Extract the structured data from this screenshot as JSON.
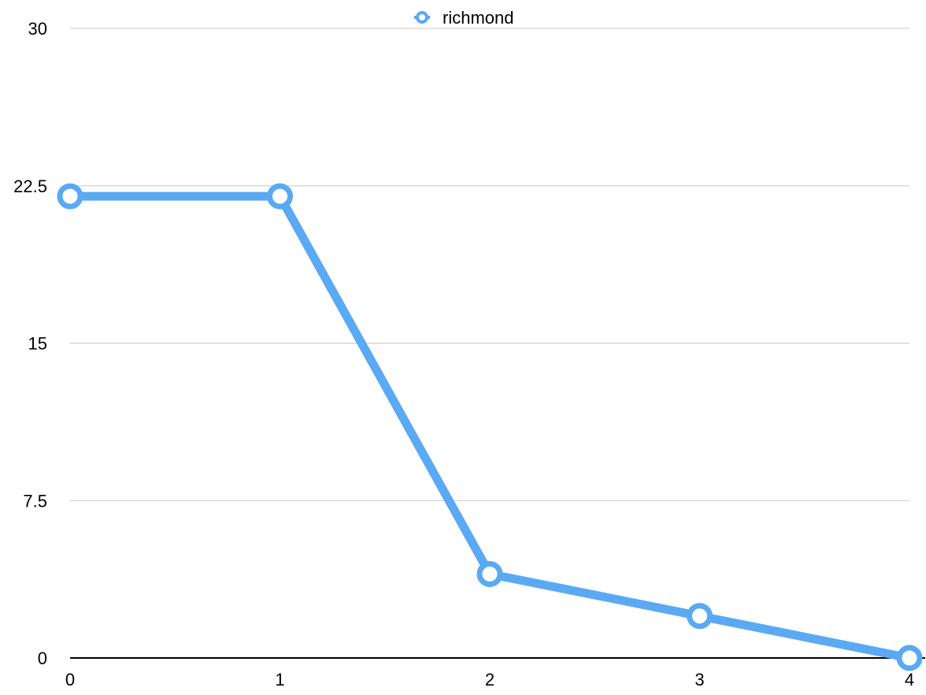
{
  "chart_data": {
    "type": "line",
    "title": "",
    "xlabel": "",
    "ylabel": "",
    "x": [
      0,
      1,
      2,
      3,
      4
    ],
    "x_tick_labels": [
      "0",
      "1",
      "2",
      "3",
      "4"
    ],
    "y_tick_labels": [
      "0",
      "7.5",
      "15",
      "22.5",
      "30"
    ],
    "ylim": [
      0,
      30
    ],
    "xlim": [
      0,
      4
    ],
    "grid": true,
    "legend_position": "top-center",
    "series": [
      {
        "name": "richmond",
        "color": "#5aa9f3",
        "values": [
          22,
          22,
          4,
          2,
          0
        ]
      }
    ]
  }
}
